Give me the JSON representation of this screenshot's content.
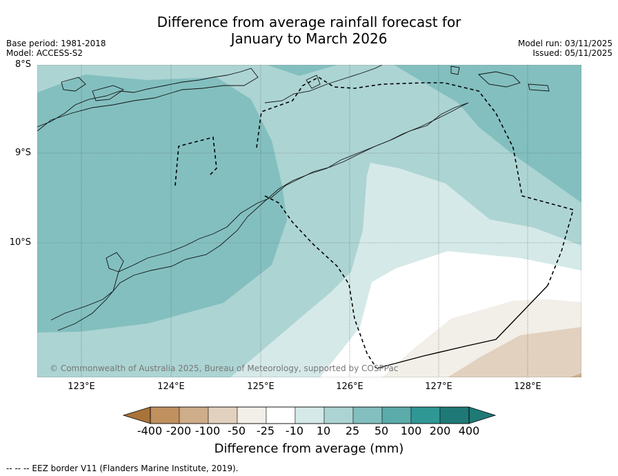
{
  "title_line1": "Difference from average rainfall forecast for",
  "title_line2": "January to March 2026",
  "base_period": "Base period: 1981-2018",
  "model": "Model: ACCESS-S2",
  "model_run": "Model run: 03/11/2025",
  "issued": "Issued: 05/11/2025",
  "lat_labels": [
    "8°S",
    "9°S",
    "10°S"
  ],
  "lon_labels": [
    "123°E",
    "124°E",
    "125°E",
    "126°E",
    "127°E",
    "128°E"
  ],
  "copyright": "© Commonwealth of Australia 2025, Bureau of Meteorology, supported by COSPPac",
  "colorbar": {
    "title": "Difference from average (mm)",
    "labels": [
      "-400",
      "-200",
      "-100",
      "-50",
      "-25",
      "-10",
      "10",
      "25",
      "50",
      "100",
      "200",
      "400"
    ],
    "colors": [
      "#a97339",
      "#c0915f",
      "#cead8b",
      "#e2d1bf",
      "#f2eee8",
      "#ffffff",
      "#d5e9e8",
      "#acd4d3",
      "#83bfbf",
      "#5aabaa",
      "#2f9794",
      "#1f7a77"
    ]
  },
  "eez_note": "--  --  -- EEZ border V11 (Flanders Marine Institute, 2019)."
}
